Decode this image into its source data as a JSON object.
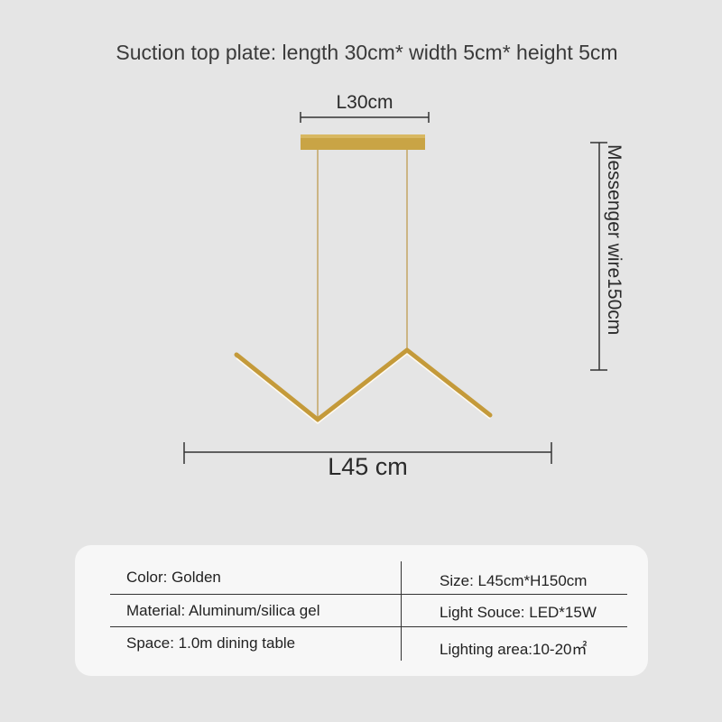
{
  "header": {
    "title": "Suction top plate: length 30cm* width 5cm* height 5cm"
  },
  "dimensions": {
    "plate_length": "L30cm",
    "overall_length": "L45 cm",
    "wire_length": "Messenger wire150cm"
  },
  "colors": {
    "background": "#e5e5e5",
    "gold": "#c9a445",
    "card": "#f7f7f7"
  },
  "specs": {
    "left": [
      "Color: Golden",
      "Material: Aluminum/silica gel",
      "Space: 1.0m dining table"
    ],
    "right": [
      "Size: L45cm*H150cm",
      "Light Souce: LED*15W",
      "Lighting area:10-20㎡"
    ]
  }
}
